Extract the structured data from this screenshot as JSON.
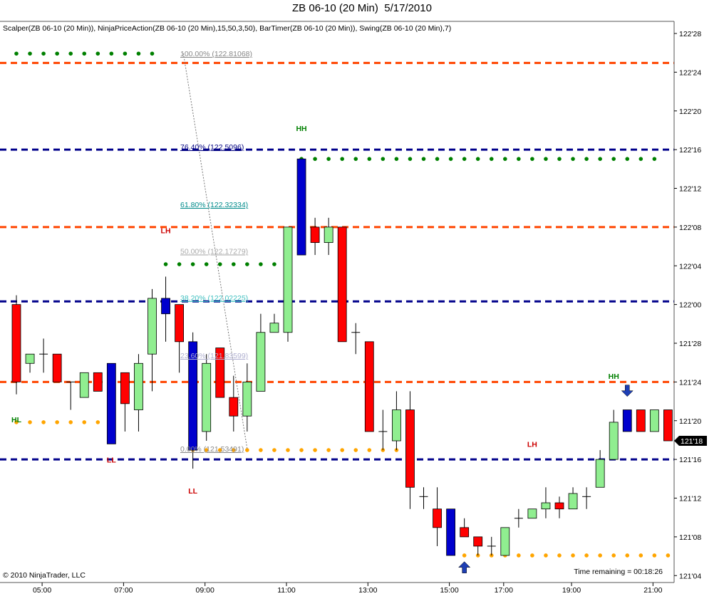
{
  "window": {
    "title": "ZB 06-10 (20 Min)  5/17/2010",
    "indicators": "Scalper(ZB 06-10 (20 Min)), NinjaPriceAction(ZB 06-10 (20 Min),15,50,3,50), BarTimer(ZB 06-10 (20 Min)), Swing(ZB 06-10 (20 Min),7)",
    "copyright": "© 2010 NinjaTrader, LLC",
    "time_remaining": "Time remaining = 00:18:26",
    "last_price_label": "121'18"
  },
  "colors": {
    "up_bar": "#90EE90",
    "down_bar": "#FF0000",
    "blue_bar": "#0000CD",
    "orange_line": "#FF4500",
    "blue_line": "#00008B",
    "green_dots": "#008000",
    "orange_dots": "#FFA500",
    "swing_high": "#008000",
    "swing_low": "#CC0000"
  },
  "chart_data": {
    "type": "candlestick",
    "symbol": "ZB 06-10",
    "interval": "20 Min",
    "date": "5/17/2010",
    "y_axis_labels": [
      "122'28",
      "122'24",
      "122'20",
      "122'16",
      "122'12",
      "122'08",
      "122'04",
      "122'00",
      "121'28",
      "121'24",
      "121'20",
      "121'16",
      "121'12",
      "121'08",
      "121'04"
    ],
    "ylim": [
      121.125,
      122.875
    ],
    "x_axis_labels": [
      "05:00",
      "07:00",
      "09:00",
      "11:00",
      "13:00",
      "15:00",
      "17:00",
      "19:00",
      "21:00"
    ],
    "x_label_bar_index": [
      2,
      8,
      14,
      20,
      26,
      32,
      36,
      41,
      47
    ],
    "candles": [
      {
        "o": 122.0,
        "h": 122.03,
        "l": 121.71,
        "c": 121.75,
        "col": "red"
      },
      {
        "o": 121.81,
        "h": 121.84,
        "l": 121.78,
        "c": 121.84,
        "col": "green"
      },
      {
        "o": 121.84,
        "h": 121.89,
        "l": 121.78,
        "c": 121.84,
        "col": "doji"
      },
      {
        "o": 121.84,
        "h": 121.84,
        "l": 121.75,
        "c": 121.75,
        "col": "red"
      },
      {
        "o": 121.75,
        "h": 121.75,
        "l": 121.66,
        "c": 121.75,
        "col": "doji"
      },
      {
        "o": 121.7,
        "h": 121.78,
        "l": 121.7,
        "c": 121.78,
        "col": "green"
      },
      {
        "o": 121.78,
        "h": 121.78,
        "l": 121.72,
        "c": 121.72,
        "col": "red"
      },
      {
        "o": 121.81,
        "h": 121.81,
        "l": 121.55,
        "c": 121.55,
        "col": "blue"
      },
      {
        "o": 121.78,
        "h": 121.78,
        "l": 121.59,
        "c": 121.68,
        "col": "red"
      },
      {
        "o": 121.66,
        "h": 121.84,
        "l": 121.59,
        "c": 121.81,
        "col": "green"
      },
      {
        "o": 121.84,
        "h": 122.05,
        "l": 121.72,
        "c": 122.02,
        "col": "green"
      },
      {
        "o": 122.02,
        "h": 122.09,
        "l": 121.88,
        "c": 121.97,
        "col": "blue"
      },
      {
        "o": 122.0,
        "h": 122.0,
        "l": 121.78,
        "c": 121.88,
        "col": "red"
      },
      {
        "o": 121.88,
        "h": 121.91,
        "l": 121.47,
        "c": 121.53,
        "col": "blue"
      },
      {
        "o": 121.81,
        "h": 121.84,
        "l": 121.56,
        "c": 121.59,
        "col": "green"
      },
      {
        "o": 121.86,
        "h": 121.86,
        "l": 121.7,
        "c": 121.7,
        "col": "red"
      },
      {
        "o": 121.7,
        "h": 121.77,
        "l": 121.59,
        "c": 121.64,
        "col": "red"
      },
      {
        "o": 121.64,
        "h": 121.81,
        "l": 121.59,
        "c": 121.75,
        "col": "green"
      },
      {
        "o": 121.72,
        "h": 121.97,
        "l": 121.72,
        "c": 121.91,
        "col": "green"
      },
      {
        "o": 121.91,
        "h": 121.97,
        "l": 121.91,
        "c": 121.94,
        "col": "green"
      },
      {
        "o": 121.91,
        "h": 122.25,
        "l": 121.88,
        "c": 122.25,
        "col": "green"
      },
      {
        "o": 122.47,
        "h": 122.47,
        "l": 122.16,
        "c": 122.16,
        "col": "blue"
      },
      {
        "o": 122.25,
        "h": 122.28,
        "l": 122.16,
        "c": 122.2,
        "col": "red"
      },
      {
        "o": 122.2,
        "h": 122.28,
        "l": 122.16,
        "c": 122.25,
        "col": "green"
      },
      {
        "o": 122.25,
        "h": 122.25,
        "l": 121.88,
        "c": 121.88,
        "col": "red"
      },
      {
        "o": 121.91,
        "h": 121.94,
        "l": 121.84,
        "c": 121.91,
        "col": "doji"
      },
      {
        "o": 121.88,
        "h": 121.88,
        "l": 121.59,
        "c": 121.59,
        "col": "red"
      },
      {
        "o": 121.59,
        "h": 121.66,
        "l": 121.53,
        "c": 121.59,
        "col": "doji"
      },
      {
        "o": 121.56,
        "h": 121.72,
        "l": 121.53,
        "c": 121.66,
        "col": "green"
      },
      {
        "o": 121.66,
        "h": 121.72,
        "l": 121.34,
        "c": 121.41,
        "col": "red"
      },
      {
        "o": 121.38,
        "h": 121.41,
        "l": 121.34,
        "c": 121.38,
        "col": "doji"
      },
      {
        "o": 121.34,
        "h": 121.41,
        "l": 121.22,
        "c": 121.28,
        "col": "red"
      },
      {
        "o": 121.34,
        "h": 121.34,
        "l": 121.19,
        "c": 121.19,
        "col": "blue"
      },
      {
        "o": 121.28,
        "h": 121.31,
        "l": 121.25,
        "c": 121.25,
        "col": "red"
      },
      {
        "o": 121.25,
        "h": 121.25,
        "l": 121.19,
        "c": 121.22,
        "col": "red"
      },
      {
        "o": 121.22,
        "h": 121.25,
        "l": 121.19,
        "c": 121.22,
        "col": "doji"
      },
      {
        "o": 121.19,
        "h": 121.28,
        "l": 121.19,
        "c": 121.28,
        "col": "green"
      },
      {
        "o": 121.31,
        "h": 121.34,
        "l": 121.28,
        "c": 121.31,
        "col": "doji"
      },
      {
        "o": 121.31,
        "h": 121.34,
        "l": 121.31,
        "c": 121.34,
        "col": "green"
      },
      {
        "o": 121.34,
        "h": 121.41,
        "l": 121.31,
        "c": 121.36,
        "col": "green"
      },
      {
        "o": 121.36,
        "h": 121.38,
        "l": 121.31,
        "c": 121.34,
        "col": "red"
      },
      {
        "o": 121.34,
        "h": 121.41,
        "l": 121.34,
        "c": 121.39,
        "col": "green"
      },
      {
        "o": 121.38,
        "h": 121.41,
        "l": 121.34,
        "c": 121.38,
        "col": "doji"
      },
      {
        "o": 121.41,
        "h": 121.53,
        "l": 121.41,
        "c": 121.5,
        "col": "green"
      },
      {
        "o": 121.5,
        "h": 121.66,
        "l": 121.5,
        "c": 121.62,
        "col": "green"
      },
      {
        "o": 121.59,
        "h": 121.66,
        "l": 121.59,
        "c": 121.66,
        "col": "blue"
      },
      {
        "o": 121.66,
        "h": 121.66,
        "l": 121.59,
        "c": 121.59,
        "col": "red"
      },
      {
        "o": 121.66,
        "h": 121.66,
        "l": 121.59,
        "c": 121.59,
        "col": "green"
      },
      {
        "o": 121.66,
        "h": 121.66,
        "l": 121.56,
        "c": 121.56,
        "col": "red"
      },
      {
        "o": 121.56,
        "h": 121.56,
        "l": 121.56,
        "c": 121.56,
        "col": "doji"
      }
    ],
    "horizontal_lines": [
      {
        "price": 122.78,
        "color": "orange"
      },
      {
        "price": 122.5,
        "color": "blue"
      },
      {
        "price": 122.25,
        "color": "orange"
      },
      {
        "price": 122.01,
        "color": "blue"
      },
      {
        "price": 121.75,
        "color": "orange"
      },
      {
        "price": 121.5,
        "color": "blue"
      }
    ],
    "fib_levels": [
      {
        "label": "100.00% (122.81068)",
        "price": 122.81068,
        "color": "#888888"
      },
      {
        "label": "76.40% (122.5096)",
        "price": 122.5096,
        "color": "#000080"
      },
      {
        "label": "61.80% (122.32334)",
        "price": 122.32334,
        "color": "#008B8B"
      },
      {
        "label": "50.00% (122.17279)",
        "price": 122.17279,
        "color": "#AAAAAA"
      },
      {
        "label": "38.20% (122.02225)",
        "price": 122.02225,
        "color": "#40C0C0"
      },
      {
        "label": "23.60% (121.83599)",
        "price": 121.83599,
        "color": "#B0B0D0"
      },
      {
        "label": "0.00% (121.53491)",
        "price": 121.53491,
        "color": "#888888"
      }
    ],
    "dot_rows": [
      {
        "price": 122.81,
        "from": 0,
        "to": 10,
        "color": "green"
      },
      {
        "price": 122.47,
        "from": 21,
        "to": 47,
        "color": "green"
      },
      {
        "price": 122.13,
        "from": 11,
        "to": 19,
        "color": "green"
      },
      {
        "price": 121.62,
        "from": 0,
        "to": 6,
        "color": "orange"
      },
      {
        "price": 121.53,
        "from": 13,
        "to": 28,
        "color": "orange"
      },
      {
        "price": 121.19,
        "from": 33,
        "to": 48,
        "color": "orange"
      }
    ],
    "swing_labels": [
      {
        "text": "HH",
        "bar": 21,
        "price": 122.56,
        "color": "high"
      },
      {
        "text": "LH",
        "bar": 11,
        "price": 122.23,
        "color": "low"
      },
      {
        "text": "HL",
        "bar": 0,
        "price": 121.62,
        "color": "high"
      },
      {
        "text": "LL",
        "bar": 7,
        "price": 121.49,
        "color": "low"
      },
      {
        "text": "LL",
        "bar": 13,
        "price": 121.39,
        "color": "low"
      },
      {
        "text": "LH",
        "bar": 38,
        "price": 121.54,
        "color": "low"
      },
      {
        "text": "HH",
        "bar": 44,
        "price": 121.76,
        "color": "high"
      }
    ],
    "arrows": [
      {
        "dir": "up",
        "bar": 33,
        "price": 121.17
      },
      {
        "dir": "down",
        "bar": 45,
        "price": 121.74
      }
    ]
  }
}
